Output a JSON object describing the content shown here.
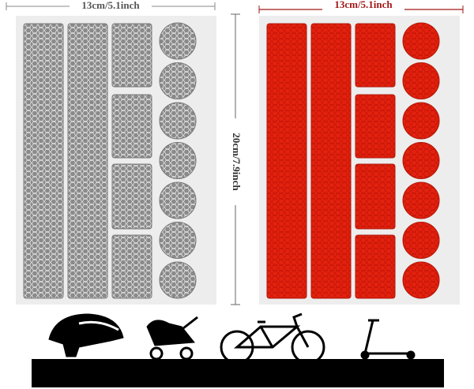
{
  "dimensions": {
    "left_width": "13cm/5.1inch",
    "right_width": "13cm/5.1inch",
    "height": "20cm/7.9inch"
  }
}
